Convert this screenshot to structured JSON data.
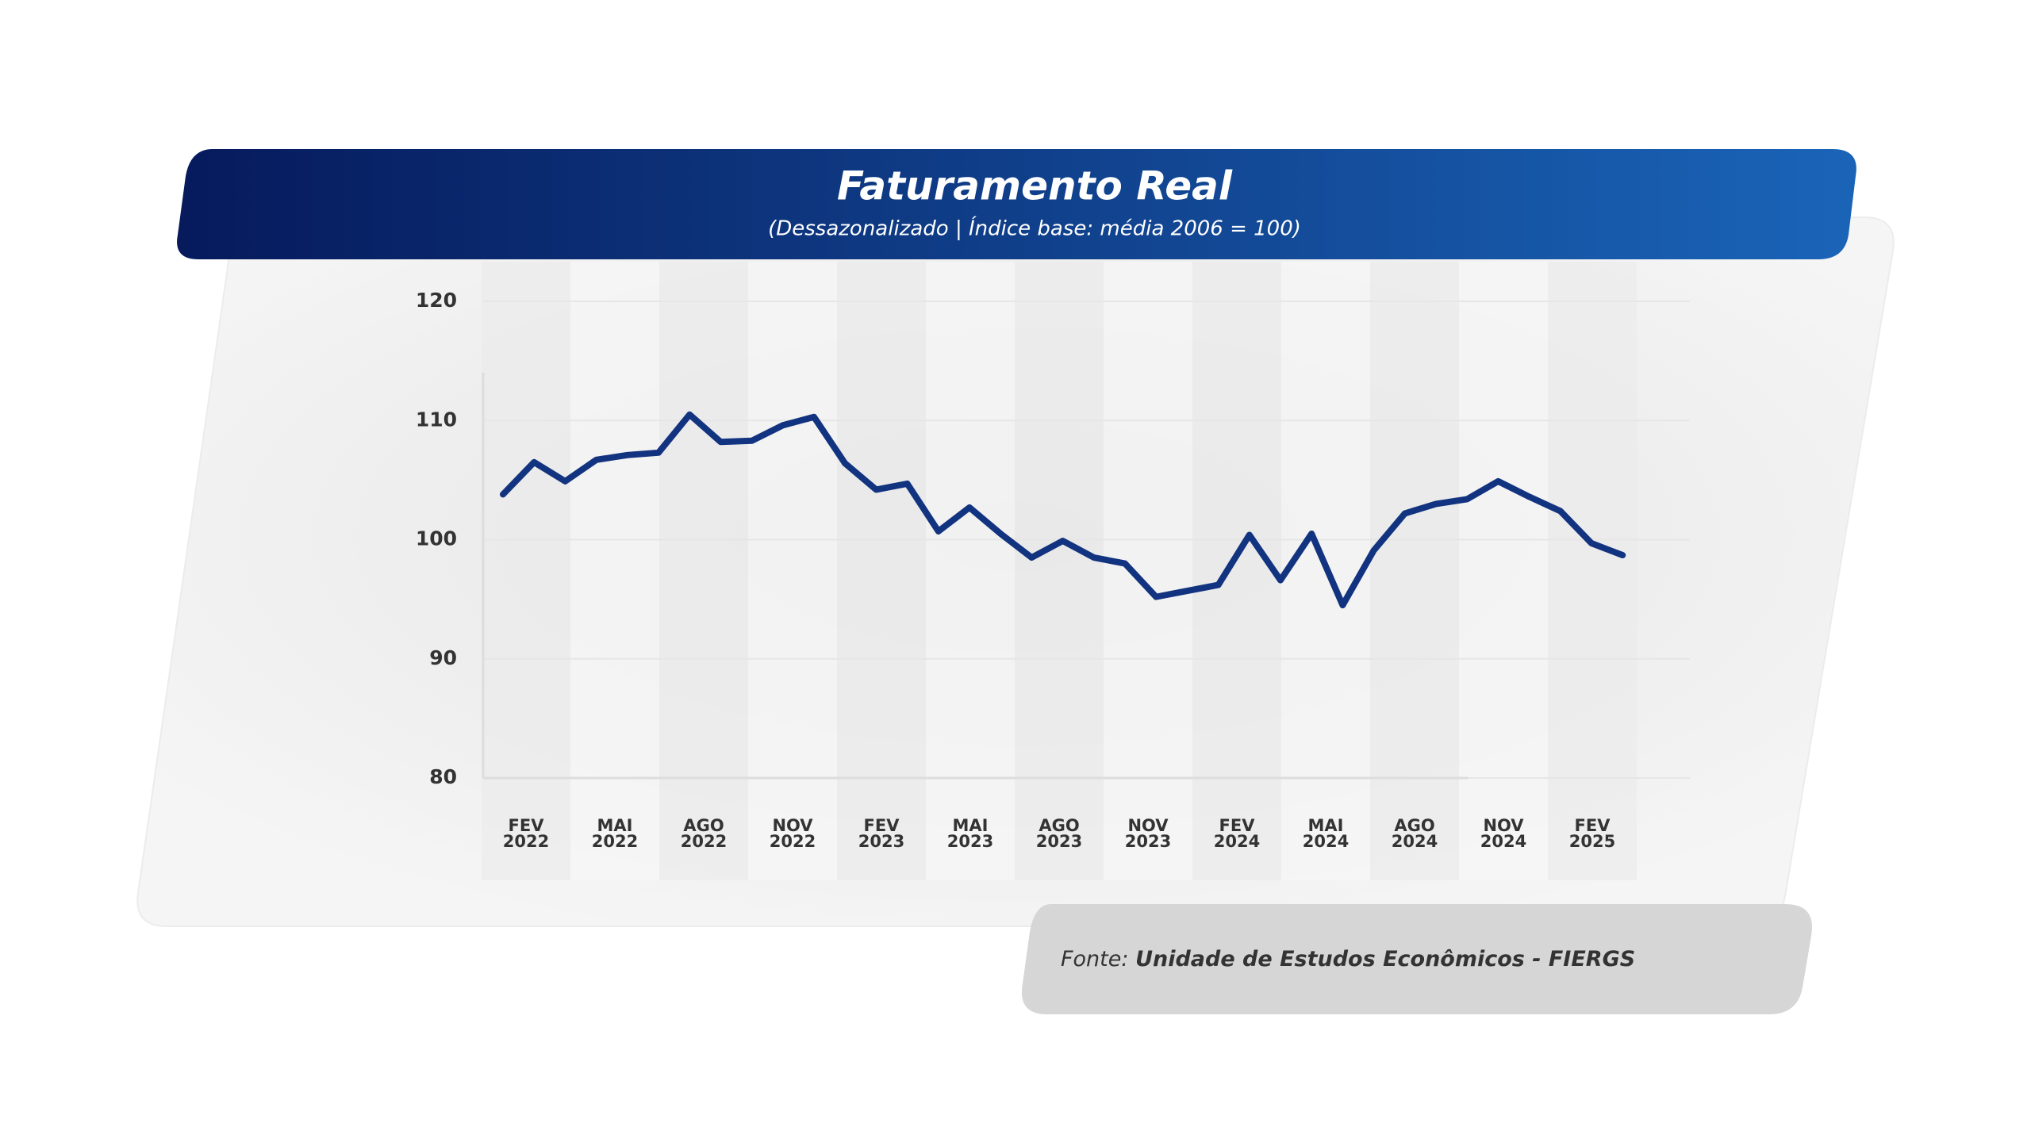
{
  "title": "Faturamento Real",
  "subtitle": "(Dessazonalizado | Índice base: média 2006 = 100)",
  "source": {
    "prefix": "Fonte:",
    "name": "Unidade de Estudos Econômicos - FIERGS"
  },
  "chart_data": {
    "type": "line",
    "categories": [
      "FEV 2022",
      null,
      null,
      "MAI 2022",
      null,
      null,
      "AGO 2022",
      null,
      null,
      "NOV 2022",
      null,
      null,
      "FEV 2023",
      null,
      null,
      "MAI 2023",
      null,
      null,
      "AGO 2023",
      null,
      null,
      "NOV 2023",
      null,
      null,
      "FEV 2024",
      null,
      null,
      "MAI 2024",
      null,
      null,
      "AGO 2024",
      null,
      null,
      "NOV 2024",
      null,
      null,
      "FEV 2025"
    ],
    "series": [
      {
        "color": "#12337f",
        "values": [
          103.8,
          106.5,
          104.9,
          106.7,
          107.1,
          107.3,
          110.5,
          108.2,
          108.3,
          109.6,
          110.3,
          106.4,
          104.2,
          104.7,
          100.7,
          102.7,
          100.5,
          98.5,
          99.9,
          98.5,
          98.0,
          95.2,
          95.7,
          96.2,
          100.4,
          96.6,
          100.5,
          94.5,
          99.1,
          102.2,
          103.0,
          103.4,
          104.9,
          103.6,
          102.4,
          99.7,
          98.7
        ]
      }
    ],
    "ylim": [
      80,
      120
    ],
    "yticks": [
      80,
      90,
      100,
      110,
      120
    ],
    "grid": true
  }
}
